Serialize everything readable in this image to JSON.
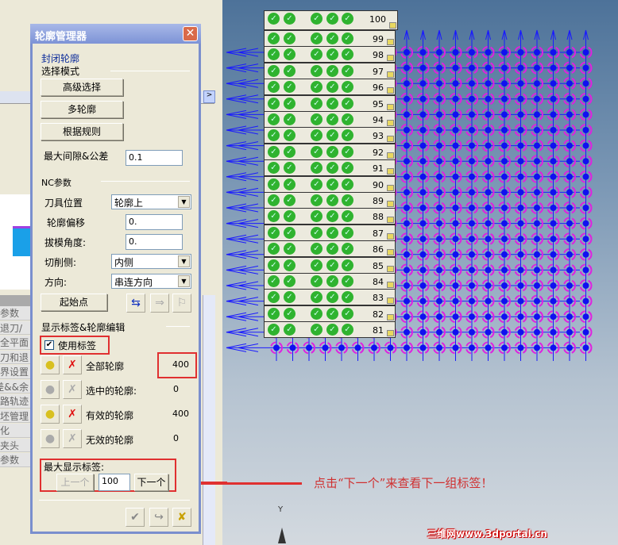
{
  "dialog": {
    "title": "轮廓管理器",
    "subtitle": "封闭轮廓",
    "select_mode": {
      "heading": "选择模式",
      "buttons": [
        "高级选择",
        "多轮廓",
        "根据规则"
      ],
      "gap_label": "最大间隙&公差",
      "gap_value": "0.1"
    },
    "nc": {
      "heading": "NC参数",
      "tool_position_label": "刀具位置",
      "tool_position_value": "轮廓上",
      "offset_label": "轮廓偏移",
      "offset_value": "0.",
      "draft_label": "拔模角度:",
      "draft_value": "0.",
      "cut_side_label": "切削侧:",
      "cut_side_value": "内侧",
      "direction_label": "方向:",
      "direction_value": "串连方向",
      "start_button": "起始点"
    },
    "tags": {
      "heading": "显示标签&轮廓编辑",
      "use_tags_label": "使用标签",
      "use_tags_checked": true,
      "rows": [
        {
          "label": "全部轮廓",
          "value": "400",
          "enabled": true
        },
        {
          "label": "选中的轮廓:",
          "value": "0",
          "enabled": false
        },
        {
          "label": "有效的轮廓",
          "value": "400",
          "enabled": true
        },
        {
          "label": "无效的轮廓",
          "value": "0",
          "enabled": false
        }
      ],
      "max_label": "最大显示标签:",
      "prev_button": "上一个",
      "max_value": "100",
      "next_button": "下一个"
    }
  },
  "side_panel_items": [
    "参数",
    "/退刀",
    "全平面",
    "刀和退",
    "界设置",
    "差&&余",
    "路轨迹",
    "坯管理",
    "化",
    "夹头",
    "参数"
  ],
  "viewport": {
    "tag_numbers": [
      "100",
      "99",
      "98",
      "97",
      "96",
      "95",
      "94",
      "93",
      "92",
      "91",
      "90",
      "89",
      "88",
      "87",
      "86",
      "85",
      "84",
      "83",
      "82",
      "81"
    ],
    "axis_label": "Y",
    "annotation": "点击“下一个”来查看下一组标签！",
    "watermark": "三维网www.3dportal.cn",
    "colors": {
      "annotation": "#d03030",
      "arrows": "#1a1aff",
      "circles": "#e020e0",
      "tag_check": "#2fb32f"
    }
  }
}
